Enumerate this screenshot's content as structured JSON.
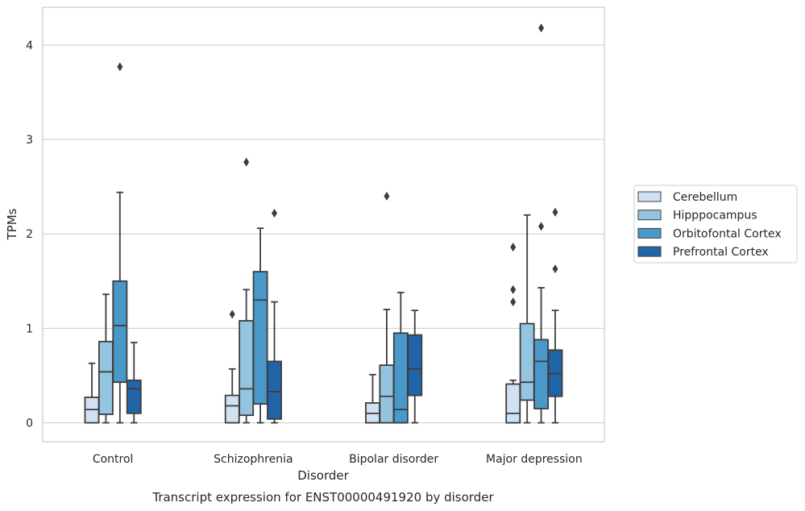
{
  "chart_data": {
    "type": "box",
    "title": "Transcript expression for ENST00000491920 by disorder",
    "xlabel": "Disorder",
    "ylabel": "TPMs",
    "ylim": [
      -0.2,
      4.4
    ],
    "yticks": [
      0,
      1,
      2,
      3,
      4
    ],
    "grid": "y",
    "legend_position": "right",
    "categories": [
      "Control",
      "Schizophrenia",
      "Bipolar disorder",
      "Major depression"
    ],
    "series": [
      {
        "name": "Cerebellum",
        "color": "#d0e1f2",
        "boxes": [
          {
            "whislo": 0.0,
            "q1": 0.0,
            "med": 0.14,
            "q3": 0.27,
            "whishi": 0.63,
            "fliers": []
          },
          {
            "whislo": 0.0,
            "q1": 0.0,
            "med": 0.18,
            "q3": 0.29,
            "whishi": 0.57,
            "fliers": [
              1.15
            ]
          },
          {
            "whislo": 0.0,
            "q1": 0.0,
            "med": 0.1,
            "q3": 0.21,
            "whishi": 0.51,
            "fliers": []
          },
          {
            "whislo": 0.0,
            "q1": 0.0,
            "med": 0.1,
            "q3": 0.41,
            "whishi": 0.45,
            "fliers": [
              1.28,
              1.41,
              1.86
            ]
          }
        ]
      },
      {
        "name": "Hipppocampus",
        "color": "#94c4df",
        "boxes": [
          {
            "whislo": 0.0,
            "q1": 0.09,
            "med": 0.54,
            "q3": 0.86,
            "whishi": 1.36,
            "fliers": []
          },
          {
            "whislo": 0.0,
            "q1": 0.08,
            "med": 0.36,
            "q3": 1.08,
            "whishi": 1.41,
            "fliers": [
              2.76
            ]
          },
          {
            "whislo": 0.0,
            "q1": 0.0,
            "med": 0.28,
            "q3": 0.61,
            "whishi": 1.2,
            "fliers": [
              2.4
            ]
          },
          {
            "whislo": 0.0,
            "q1": 0.24,
            "med": 0.43,
            "q3": 1.05,
            "whishi": 2.2,
            "fliers": []
          }
        ]
      },
      {
        "name": "Orbitofontal Cortex",
        "color": "#4a98c9",
        "boxes": [
          {
            "whislo": 0.0,
            "q1": 0.43,
            "med": 1.03,
            "q3": 1.5,
            "whishi": 2.44,
            "fliers": [
              3.77
            ]
          },
          {
            "whislo": 0.0,
            "q1": 0.2,
            "med": 1.3,
            "q3": 1.6,
            "whishi": 2.06,
            "fliers": []
          },
          {
            "whislo": 0.0,
            "q1": 0.0,
            "med": 0.14,
            "q3": 0.95,
            "whishi": 1.38,
            "fliers": []
          },
          {
            "whislo": 0.0,
            "q1": 0.15,
            "med": 0.65,
            "q3": 0.88,
            "whishi": 1.43,
            "fliers": [
              2.08,
              4.18
            ]
          }
        ]
      },
      {
        "name": "Prefrontal Cortex",
        "color": "#2264a8",
        "boxes": [
          {
            "whislo": 0.0,
            "q1": 0.1,
            "med": 0.36,
            "q3": 0.45,
            "whishi": 0.85,
            "fliers": []
          },
          {
            "whislo": 0.0,
            "q1": 0.04,
            "med": 0.33,
            "q3": 0.65,
            "whishi": 1.28,
            "fliers": [
              2.22
            ]
          },
          {
            "whislo": 0.0,
            "q1": 0.29,
            "med": 0.57,
            "q3": 0.93,
            "whishi": 1.19,
            "fliers": []
          },
          {
            "whislo": 0.0,
            "q1": 0.28,
            "med": 0.52,
            "q3": 0.77,
            "whishi": 1.19,
            "fliers": [
              1.63,
              2.23
            ]
          }
        ]
      }
    ]
  }
}
